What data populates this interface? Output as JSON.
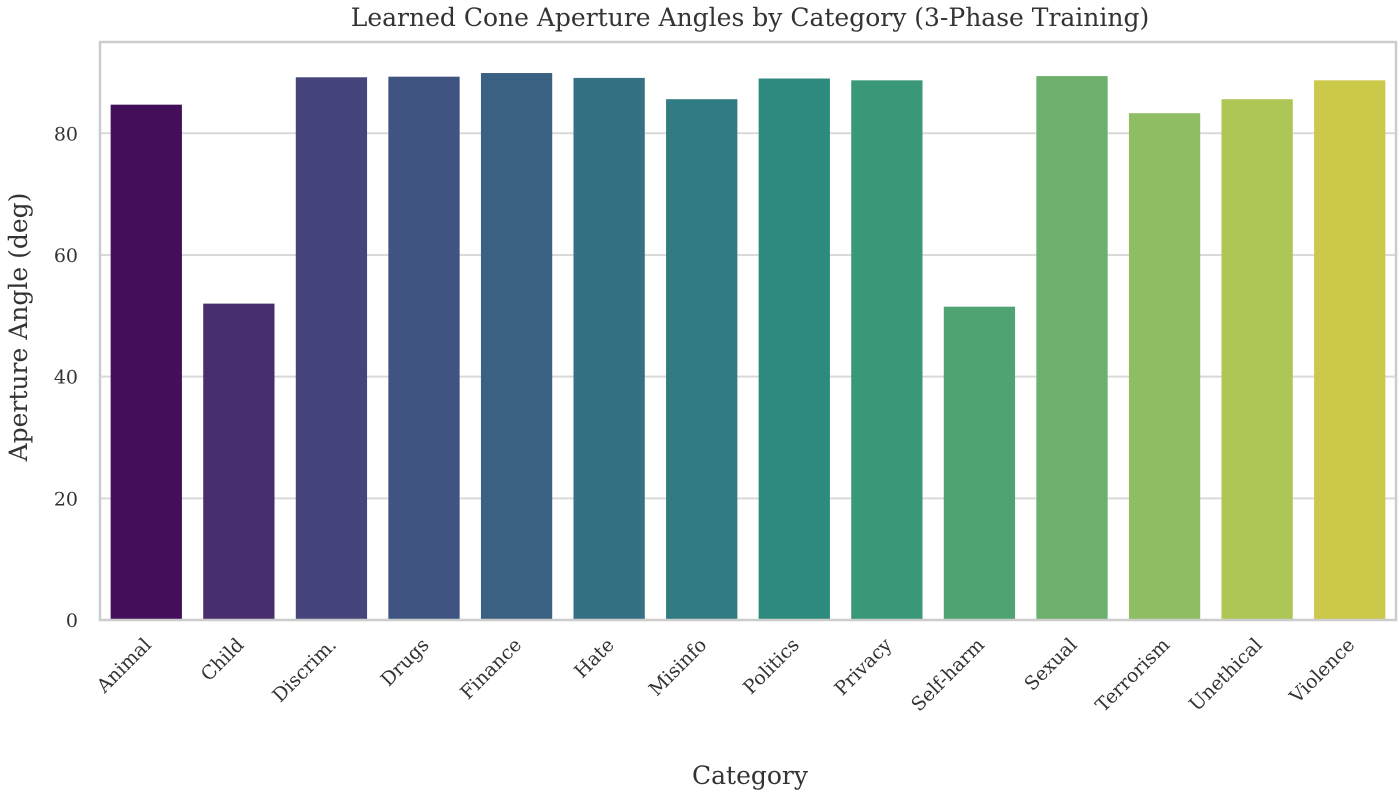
{
  "chart_data": {
    "type": "bar",
    "title": "Learned Cone Aperture Angles by Category (3-Phase Training)",
    "xlabel": "Category",
    "ylabel": "Aperture Angle (deg)",
    "ylim": [
      0,
      95
    ],
    "yticks": [
      "0",
      "20",
      "40",
      "60",
      "80"
    ],
    "grid": "horizontal",
    "categories": [
      "Animal",
      "Child",
      "Discrim.",
      "Drugs",
      "Finance",
      "Hate",
      "Misinfo",
      "Politics",
      "Privacy",
      "Self-harm",
      "Sexual",
      "Terrorism",
      "Unethical",
      "Violence"
    ],
    "values": [
      84.7,
      52.0,
      89.2,
      89.3,
      89.9,
      89.1,
      85.6,
      89.0,
      88.7,
      51.5,
      89.4,
      83.3,
      85.6,
      88.7
    ],
    "colors": [
      "#440f5a",
      "#472f6e",
      "#45457b",
      "#3f5480",
      "#3b6182",
      "#367083",
      "#317b82",
      "#2e8a7c",
      "#3a9778",
      "#4fa373",
      "#6db06d",
      "#8fbd63",
      "#aec655",
      "#cbc84a"
    ]
  }
}
